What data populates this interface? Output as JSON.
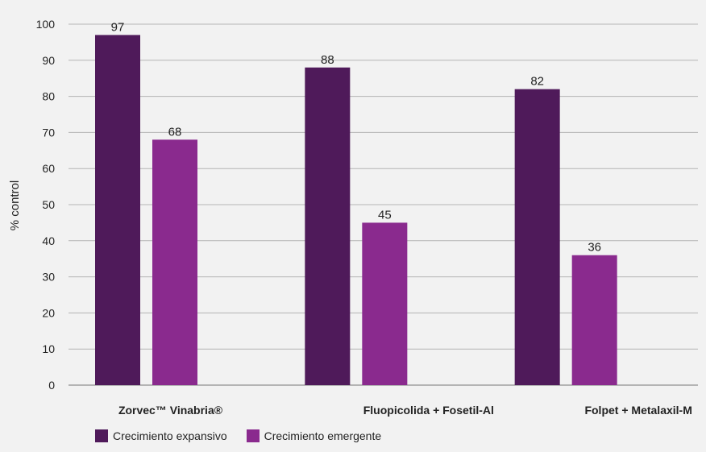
{
  "chart_data": {
    "type": "bar",
    "categories": [
      "Zorvec™ Vinabria®",
      "Fluopicolida + Fosetil-Al",
      "Folpet + Metalaxil-M"
    ],
    "series": [
      {
        "name": "Crecimiento expansivo",
        "values": [
          97,
          88,
          82
        ],
        "color": "#4f1a5a"
      },
      {
        "name": "Crecimiento emergente",
        "values": [
          68,
          45,
          36
        ],
        "color": "#8a2a8e"
      }
    ],
    "ylabel": "% control",
    "xlabel": "",
    "ylim": [
      0,
      100
    ],
    "yticks": [
      0,
      10,
      20,
      30,
      40,
      50,
      60,
      70,
      80,
      90,
      100
    ],
    "grid": true,
    "legend_position": "bottom-left"
  }
}
